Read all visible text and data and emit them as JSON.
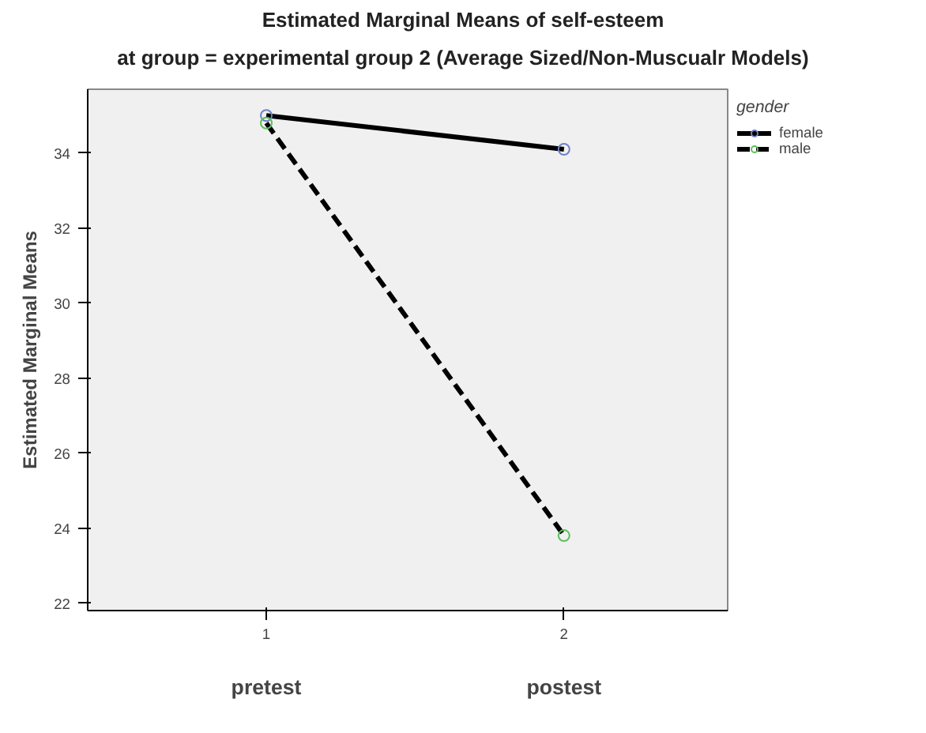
{
  "chart_data": {
    "type": "line",
    "title": "Estimated Marginal Means of self-esteem",
    "subtitle": "at group = experimental group 2 (Average Sized/Non-Muscualr Models)",
    "ylabel": "Estimated Marginal Means",
    "legend_title": "gender",
    "x": [
      1,
      2
    ],
    "xlim": [
      0.4,
      2.55
    ],
    "xticks": [
      1,
      2
    ],
    "ylim": [
      21.8,
      35.7
    ],
    "yticks": [
      22,
      24,
      26,
      28,
      30,
      32,
      34
    ],
    "series": [
      {
        "name": "female",
        "color": "#000000",
        "values": [
          35.0,
          34.1
        ],
        "line_style": "solid"
      },
      {
        "name": "male",
        "color": "#000000",
        "values": [
          34.8,
          23.8
        ],
        "line_style": "dashed"
      }
    ],
    "annotations": [
      "pretest",
      "postest"
    ],
    "marker": "circle",
    "grid": false,
    "legend": "right"
  }
}
